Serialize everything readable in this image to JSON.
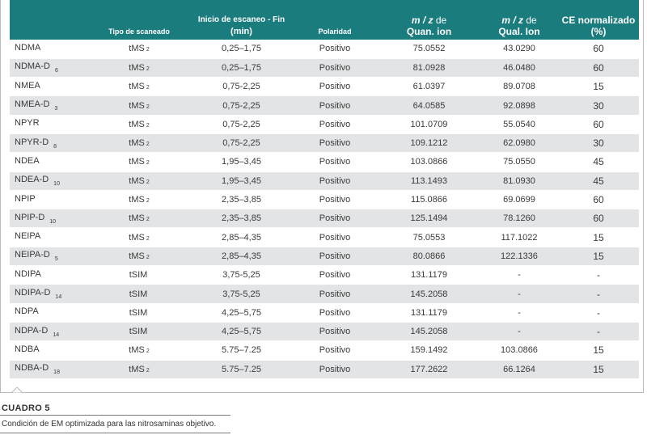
{
  "headers": {
    "compound": "",
    "scan_type": "Tipo de scaneado",
    "scan_window_line1": "Inicio de escaneo - Fin",
    "scan_window_line2": "(min)",
    "polarity": "Polaridad",
    "quan_mz_italic": "m / z",
    "quan_mz_de": " de",
    "quan_line2": "Quan. ion",
    "qual_mz_italic": "m / z",
    "qual_mz_de": " de",
    "qual_line2": "Qual. Ion",
    "ce_line1": "CE normalizado",
    "ce_line2": "(%)"
  },
  "rows": [
    {
      "name": "NDMA",
      "sub": "",
      "scan": "tMS",
      "scan_sub": "2",
      "window": "0,25–1,75",
      "pol": "Positivo",
      "quan": "75.0552",
      "qual": "43.0290",
      "ce": "60"
    },
    {
      "name": "NDMA-D",
      "sub": "6",
      "scan": "tMS",
      "scan_sub": "2",
      "window": "0,25–1,75",
      "pol": "Positivo",
      "quan": "81.0928",
      "qual": "46.0480",
      "ce": "60"
    },
    {
      "name": "NMEA",
      "sub": "",
      "scan": "tMS",
      "scan_sub": "2",
      "window": "0,75-2,25",
      "pol": "Positivo",
      "quan": "61.0397",
      "qual": "89.0708",
      "ce": "15"
    },
    {
      "name": "NMEA-D",
      "sub": "3",
      "scan": "tMS",
      "scan_sub": "2",
      "window": "0,75-2,25",
      "pol": "Positivo",
      "quan": "64.0585",
      "qual": "92.0898",
      "ce": "30"
    },
    {
      "name": "NPYR",
      "sub": "",
      "scan": "tMS",
      "scan_sub": "2",
      "window": "0,75-2,25",
      "pol": "Positivo",
      "quan": "101.0709",
      "qual": "55.0540",
      "ce": "60"
    },
    {
      "name": "NPYR-D",
      "sub": "8",
      "scan": "tMS",
      "scan_sub": "2",
      "window": "0,75-2,25",
      "pol": "Positivo",
      "quan": "109.1212",
      "qual": "62.0980",
      "ce": "30"
    },
    {
      "name": "NDEA",
      "sub": "",
      "scan": "tMS",
      "scan_sub": "2",
      "window": "1,95–3,45",
      "pol": "Positivo",
      "quan": "103.0866",
      "qual": "75.0550",
      "ce": "45"
    },
    {
      "name": "NDEA-D",
      "sub": "10",
      "scan": "tMS",
      "scan_sub": "2",
      "window": "1,95–3,45",
      "pol": "Positivo",
      "quan": "113.1493",
      "qual": "81.0930",
      "ce": "45"
    },
    {
      "name": "NPIP",
      "sub": "",
      "scan": "tMS",
      "scan_sub": "2",
      "window": "2,35–3,85",
      "pol": "Positivo",
      "quan": "115.0866",
      "qual": "69.0699",
      "ce": "60"
    },
    {
      "name": "NPIP-D",
      "sub": "10",
      "scan": "tMS",
      "scan_sub": "2",
      "window": "2,35–3,85",
      "pol": "Positivo",
      "quan": "125.1494",
      "qual": "78.1260",
      "ce": "60"
    },
    {
      "name": "NEIPA",
      "sub": "",
      "scan": "tMS",
      "scan_sub": "2",
      "window": "2,85–4,35",
      "pol": "Positivo",
      "quan": "75.0553",
      "qual": "117.1022",
      "ce": "15"
    },
    {
      "name": "NEIPA-D",
      "sub": "5",
      "scan": "tMS",
      "scan_sub": "2",
      "window": "2,85–4,35",
      "pol": "Positivo",
      "quan": "80.0866",
      "qual": "122.1336",
      "ce": "15"
    },
    {
      "name": "NDIPA",
      "sub": "",
      "scan": "tSIM",
      "scan_sub": "",
      "window": "3,75-5,25",
      "pol": "Positivo",
      "quan": "131.1179",
      "qual": "-",
      "ce": "-"
    },
    {
      "name": "NDIPA-D",
      "sub": "14",
      "scan": "tSIM",
      "scan_sub": "",
      "window": "3,75-5,25",
      "pol": "Positivo",
      "quan": "145.2058",
      "qual": "-",
      "ce": "-"
    },
    {
      "name": "NDPA",
      "sub": "",
      "scan": "tSIM",
      "scan_sub": "",
      "window": "4,25–5,75",
      "pol": "Positivo",
      "quan": "131.1179",
      "qual": "-",
      "ce": "-"
    },
    {
      "name": "NDPA-D",
      "sub": "14",
      "scan": "tSIM",
      "scan_sub": "",
      "window": "4,25–5,75",
      "pol": "Positivo",
      "quan": "145.2058",
      "qual": "-",
      "ce": "-"
    },
    {
      "name": "NDBA",
      "sub": "",
      "scan": "tMS",
      "scan_sub": "2",
      "window": "5.75–7.25",
      "pol": "Positivo",
      "quan": "159.1492",
      "qual": "103.0866",
      "ce": "15"
    },
    {
      "name": "NDBA-D",
      "sub": "18",
      "scan": "tMS",
      "scan_sub": "2",
      "window": "5.75–7.25",
      "pol": "Positivo",
      "quan": "177.2622",
      "qual": "66.1264",
      "ce": "15"
    }
  ],
  "caption": {
    "title": "CUADRO 5",
    "text": "Condición de EM optimizada para las nitrosaminas objetivo."
  }
}
